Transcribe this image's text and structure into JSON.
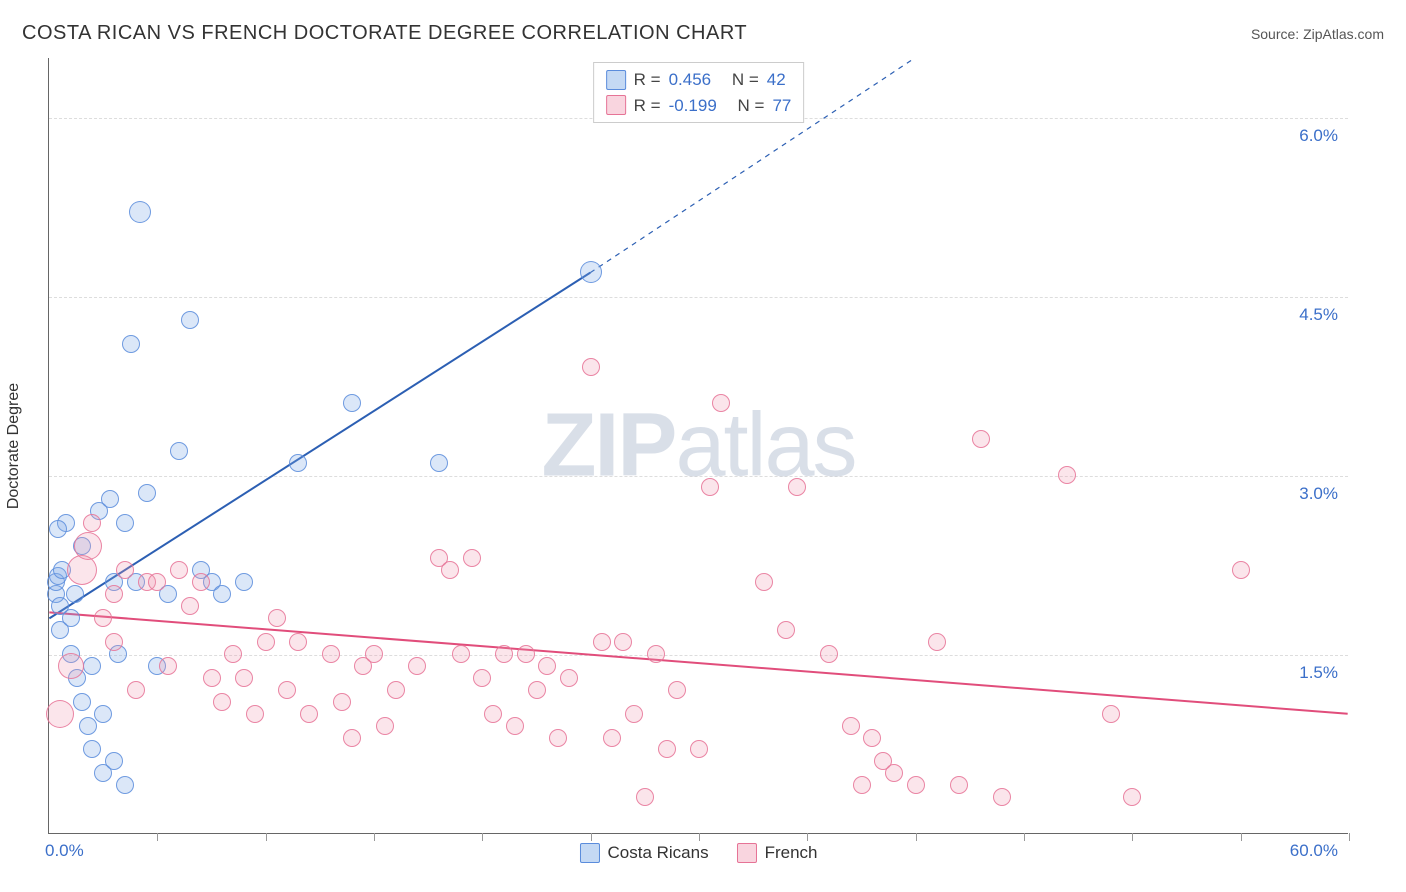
{
  "title": "COSTA RICAN VS FRENCH DOCTORATE DEGREE CORRELATION CHART",
  "source_label": "Source: ",
  "source_name": "ZipAtlas.com",
  "ylabel": "Doctorate Degree",
  "watermark_bold": "ZIP",
  "watermark_light": "atlas",
  "chart": {
    "type": "scatter",
    "xlim": [
      0,
      60
    ],
    "ylim": [
      0,
      6.5
    ],
    "x_min_label": "0.0%",
    "x_max_label": "60.0%",
    "x_tick_positions": [
      5,
      10,
      15,
      20,
      25,
      30,
      35,
      40,
      45,
      50,
      55,
      60
    ],
    "y_gridlines": [
      {
        "value": 1.5,
        "label": "1.5%"
      },
      {
        "value": 3.0,
        "label": "3.0%"
      },
      {
        "value": 4.5,
        "label": "4.5%"
      },
      {
        "value": 6.0,
        "label": "6.0%"
      }
    ],
    "background_color": "#ffffff",
    "grid_color": "#dddddd",
    "axis_color": "#666666",
    "tick_label_color": "#3b6fc9",
    "point_radius_default": 9,
    "series": [
      {
        "name": "Costa Ricans",
        "fill_color": "rgba(124,170,230,0.28)",
        "stroke_color": "rgba(90,140,220,0.85)",
        "R": "0.456",
        "N": "42",
        "trend": {
          "x1": 0,
          "y1": 1.8,
          "x2": 25,
          "y2": 4.7,
          "dash_x2": 40,
          "dash_y2": 6.5,
          "stroke": "#2c5fb3",
          "width": 2
        },
        "points": [
          {
            "x": 0.3,
            "y": 2.0
          },
          {
            "x": 0.3,
            "y": 2.1
          },
          {
            "x": 0.4,
            "y": 2.15
          },
          {
            "x": 0.5,
            "y": 1.9
          },
          {
            "x": 0.5,
            "y": 1.7
          },
          {
            "x": 0.6,
            "y": 2.2
          },
          {
            "x": 0.8,
            "y": 2.6
          },
          {
            "x": 1.0,
            "y": 1.8
          },
          {
            "x": 1.0,
            "y": 1.5
          },
          {
            "x": 1.2,
            "y": 2.0
          },
          {
            "x": 1.3,
            "y": 1.3
          },
          {
            "x": 1.5,
            "y": 2.4
          },
          {
            "x": 1.5,
            "y": 1.1
          },
          {
            "x": 1.8,
            "y": 0.9
          },
          {
            "x": 2.0,
            "y": 1.4
          },
          {
            "x": 2.0,
            "y": 0.7
          },
          {
            "x": 2.3,
            "y": 2.7
          },
          {
            "x": 2.5,
            "y": 1.0
          },
          {
            "x": 2.5,
            "y": 0.5
          },
          {
            "x": 2.8,
            "y": 2.8
          },
          {
            "x": 3.0,
            "y": 2.1
          },
          {
            "x": 3.0,
            "y": 0.6
          },
          {
            "x": 3.2,
            "y": 1.5
          },
          {
            "x": 3.5,
            "y": 2.6
          },
          {
            "x": 3.5,
            "y": 0.4
          },
          {
            "x": 3.8,
            "y": 4.1
          },
          {
            "x": 4.0,
            "y": 2.1
          },
          {
            "x": 4.2,
            "y": 5.2,
            "r": 11
          },
          {
            "x": 4.5,
            "y": 2.85
          },
          {
            "x": 5.0,
            "y": 1.4
          },
          {
            "x": 5.5,
            "y": 2.0
          },
          {
            "x": 6.0,
            "y": 3.2
          },
          {
            "x": 6.5,
            "y": 4.3
          },
          {
            "x": 7.0,
            "y": 2.2
          },
          {
            "x": 7.5,
            "y": 2.1
          },
          {
            "x": 8.0,
            "y": 2.0
          },
          {
            "x": 9.0,
            "y": 2.1
          },
          {
            "x": 11.5,
            "y": 3.1
          },
          {
            "x": 14.0,
            "y": 3.6
          },
          {
            "x": 18.0,
            "y": 3.1
          },
          {
            "x": 25.0,
            "y": 4.7,
            "r": 11
          },
          {
            "x": 0.4,
            "y": 2.55
          }
        ]
      },
      {
        "name": "French",
        "fill_color": "rgba(240,150,175,0.25)",
        "stroke_color": "rgba(230,115,150,0.85)",
        "R": "-0.199",
        "N": "77",
        "trend": {
          "x1": 0,
          "y1": 1.85,
          "x2": 60,
          "y2": 1.0,
          "stroke": "#e14d7b",
          "width": 2
        },
        "points": [
          {
            "x": 0.5,
            "y": 1.0,
            "r": 14
          },
          {
            "x": 1.0,
            "y": 1.4,
            "r": 13
          },
          {
            "x": 1.5,
            "y": 2.2,
            "r": 15
          },
          {
            "x": 1.8,
            "y": 2.4,
            "r": 14
          },
          {
            "x": 2.0,
            "y": 2.6
          },
          {
            "x": 2.5,
            "y": 1.8
          },
          {
            "x": 3.0,
            "y": 1.6
          },
          {
            "x": 3.5,
            "y": 2.2
          },
          {
            "x": 4.0,
            "y": 1.2
          },
          {
            "x": 4.5,
            "y": 2.1
          },
          {
            "x": 5.0,
            "y": 2.1
          },
          {
            "x": 5.5,
            "y": 1.4
          },
          {
            "x": 6.0,
            "y": 2.2
          },
          {
            "x": 7.0,
            "y": 2.1
          },
          {
            "x": 7.5,
            "y": 1.3
          },
          {
            "x": 8.0,
            "y": 1.1
          },
          {
            "x": 8.5,
            "y": 1.5
          },
          {
            "x": 9.0,
            "y": 1.3
          },
          {
            "x": 9.5,
            "y": 1.0
          },
          {
            "x": 10.0,
            "y": 1.6
          },
          {
            "x": 10.5,
            "y": 1.8
          },
          {
            "x": 11.0,
            "y": 1.2
          },
          {
            "x": 11.5,
            "y": 1.6
          },
          {
            "x": 12.0,
            "y": 1.0
          },
          {
            "x": 13.0,
            "y": 1.5
          },
          {
            "x": 14.0,
            "y": 0.8
          },
          {
            "x": 14.5,
            "y": 1.4
          },
          {
            "x": 15.0,
            "y": 1.5
          },
          {
            "x": 15.5,
            "y": 0.9
          },
          {
            "x": 17.0,
            "y": 1.4
          },
          {
            "x": 18.0,
            "y": 2.3
          },
          {
            "x": 18.5,
            "y": 2.2
          },
          {
            "x": 19.0,
            "y": 1.5
          },
          {
            "x": 19.5,
            "y": 2.3
          },
          {
            "x": 20.0,
            "y": 1.3
          },
          {
            "x": 20.5,
            "y": 1.0
          },
          {
            "x": 21.0,
            "y": 1.5
          },
          {
            "x": 21.5,
            "y": 0.9
          },
          {
            "x": 22.0,
            "y": 1.5
          },
          {
            "x": 22.5,
            "y": 1.2
          },
          {
            "x": 23.0,
            "y": 1.4
          },
          {
            "x": 23.5,
            "y": 0.8
          },
          {
            "x": 24.0,
            "y": 1.3
          },
          {
            "x": 25.0,
            "y": 3.9
          },
          {
            "x": 25.5,
            "y": 1.6
          },
          {
            "x": 26.0,
            "y": 0.8
          },
          {
            "x": 26.5,
            "y": 1.6
          },
          {
            "x": 27.0,
            "y": 1.0
          },
          {
            "x": 27.5,
            "y": 0.3
          },
          {
            "x": 28.0,
            "y": 1.5
          },
          {
            "x": 28.5,
            "y": 0.7
          },
          {
            "x": 29.0,
            "y": 1.2
          },
          {
            "x": 30.0,
            "y": 0.7
          },
          {
            "x": 30.5,
            "y": 2.9
          },
          {
            "x": 31.0,
            "y": 3.6
          },
          {
            "x": 33.0,
            "y": 2.1
          },
          {
            "x": 34.0,
            "y": 1.7
          },
          {
            "x": 34.5,
            "y": 2.9
          },
          {
            "x": 36.0,
            "y": 1.5
          },
          {
            "x": 37.0,
            "y": 0.9
          },
          {
            "x": 37.5,
            "y": 0.4
          },
          {
            "x": 38.0,
            "y": 0.8
          },
          {
            "x": 38.5,
            "y": 0.6
          },
          {
            "x": 39.0,
            "y": 0.5
          },
          {
            "x": 40.0,
            "y": 0.4
          },
          {
            "x": 41.0,
            "y": 1.6
          },
          {
            "x": 42.0,
            "y": 0.4
          },
          {
            "x": 43.0,
            "y": 3.3
          },
          {
            "x": 44.0,
            "y": 0.3
          },
          {
            "x": 47.0,
            "y": 3.0
          },
          {
            "x": 49.0,
            "y": 1.0
          },
          {
            "x": 50.0,
            "y": 0.3
          },
          {
            "x": 55.0,
            "y": 2.2
          },
          {
            "x": 3.0,
            "y": 2.0
          },
          {
            "x": 6.5,
            "y": 1.9
          },
          {
            "x": 13.5,
            "y": 1.1
          },
          {
            "x": 16.0,
            "y": 1.2
          }
        ]
      }
    ],
    "stat_legend": {
      "r_label": "R =",
      "n_label": "N ="
    },
    "series_legend_labels": [
      "Costa Ricans",
      "French"
    ]
  }
}
